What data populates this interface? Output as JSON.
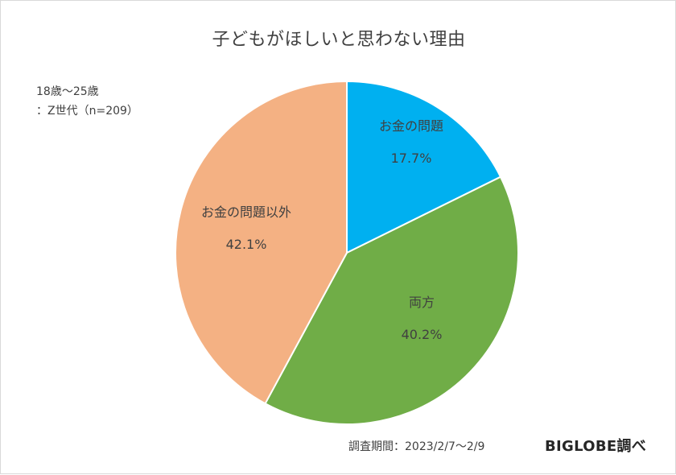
{
  "chart_data": {
    "type": "pie",
    "title": "子どもがほしいと思わない理由",
    "sample_note": [
      "18歳～25歳",
      "：Z世代（n=209）"
    ],
    "slices": [
      {
        "label": "お金の問題",
        "value": 17.7,
        "value_label": "17.7%",
        "color": "#00b0f0"
      },
      {
        "label": "両方",
        "value": 40.2,
        "value_label": "40.2%",
        "color": "#70ad47"
      },
      {
        "label": "お金の問題以外",
        "value": 42.1,
        "value_label": "42.1%",
        "color": "#f4b183"
      }
    ],
    "footer_period": "調査期間：2023/2/7～2/9",
    "credit": "BIGLOBE調べ"
  }
}
